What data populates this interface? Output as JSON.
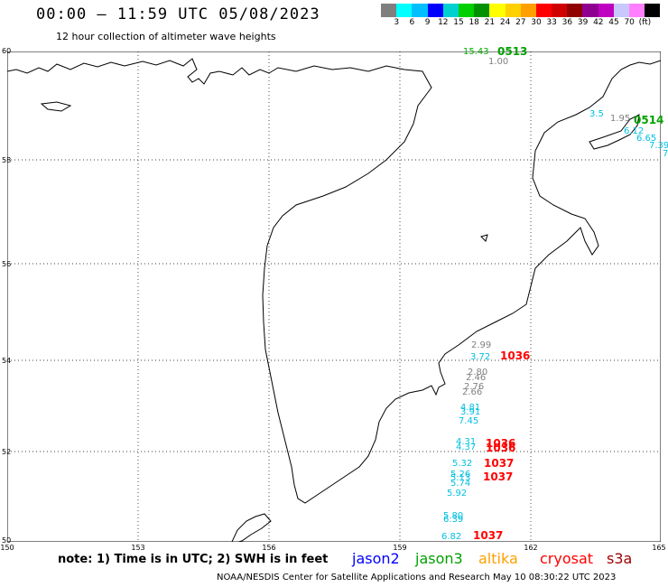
{
  "header": {
    "title": "00:00 – 11:59 UTC 05/08/2023",
    "subtitle": "12 hour collection of altimeter wave heights"
  },
  "colorbar": {
    "colors": [
      "#7f7f7f",
      "#00ffff",
      "#00bfff",
      "#0000ff",
      "#00d0d0",
      "#00d000",
      "#009000",
      "#ffff00",
      "#ffd000",
      "#ffa000",
      "#ff0000",
      "#d00000",
      "#900000",
      "#900090",
      "#c000c0",
      "#c8c8ff",
      "#ff80ff",
      "#000000"
    ],
    "labels": [
      "3",
      "6",
      "9",
      "12",
      "15",
      "18",
      "21",
      "24",
      "27",
      "30",
      "33",
      "36",
      "39",
      "42",
      "45",
      "70",
      "(ft)"
    ]
  },
  "map": {
    "lat_labels": [
      "60",
      "58",
      "56",
      "54",
      "52",
      "50"
    ],
    "lon_labels": [
      "150",
      "153",
      "156",
      "159",
      "162",
      "165"
    ],
    "observations": [
      {
        "text": "15.43",
        "color": "#00b000"
      },
      {
        "text": "1.00",
        "color": "#808080"
      },
      {
        "text": "3.5",
        "color": "#00c0e0"
      },
      {
        "text": "1.95",
        "color": "#808080"
      },
      {
        "text": "6.12",
        "color": "#00c0e0"
      },
      {
        "text": "6.65",
        "color": "#00c0e0"
      },
      {
        "text": "7.39",
        "color": "#00c0e0"
      },
      {
        "text": "7",
        "color": "#00c0e0"
      },
      {
        "text": "2.99",
        "color": "#808080"
      },
      {
        "text": "3.72",
        "color": "#00c0e0"
      },
      {
        "text": "2.80",
        "color": "#808080"
      },
      {
        "text": "2.46",
        "color": "#808080"
      },
      {
        "text": "2.76",
        "color": "#808080"
      },
      {
        "text": "2.66",
        "color": "#808080"
      },
      {
        "text": "4.81",
        "color": "#00c0e0"
      },
      {
        "text": "3.91",
        "color": "#00c0e0"
      },
      {
        "text": "7.45",
        "color": "#00c0e0"
      },
      {
        "text": "4.31",
        "color": "#00c0e0"
      },
      {
        "text": "4.37",
        "color": "#00c0e0"
      },
      {
        "text": "5.32",
        "color": "#00c0e0"
      },
      {
        "text": "5.26",
        "color": "#00c0e0"
      },
      {
        "text": "5.13",
        "color": "#00c0e0"
      },
      {
        "text": "5.74",
        "color": "#00c0e0"
      },
      {
        "text": "5.92",
        "color": "#00c0e0"
      },
      {
        "text": "5.80",
        "color": "#00c0e0"
      },
      {
        "text": "6.39",
        "color": "#00c0e0"
      },
      {
        "text": "6.82",
        "color": "#00c0e0"
      }
    ],
    "passes": [
      {
        "text": "0513",
        "color": "#00a000"
      },
      {
        "text": "0514",
        "color": "#00a000"
      },
      {
        "text": "1036",
        "color": "#ff0000"
      },
      {
        "text": "1036",
        "color": "#ff0000"
      },
      {
        "text": "1036",
        "color": "#ff0000"
      },
      {
        "text": "1037",
        "color": "#ff0000"
      },
      {
        "text": "1037",
        "color": "#ff0000"
      },
      {
        "text": "1037",
        "color": "#ff0000"
      }
    ]
  },
  "footer": {
    "note": "note: 1) Time is in UTC; 2) SWH is in feet",
    "legend": [
      {
        "text": "jason2",
        "color": "#0000ff"
      },
      {
        "text": "jason3",
        "color": "#00a000"
      },
      {
        "text": "altika",
        "color": "#ffa000"
      },
      {
        "text": "cryosat",
        "color": "#ff0000"
      },
      {
        "text": "s3a",
        "color": "#a00000"
      }
    ],
    "credit": "NOAA/NESDIS Center for Satellite Applications and Research   May 10 08:30:22 UTC 2023"
  }
}
